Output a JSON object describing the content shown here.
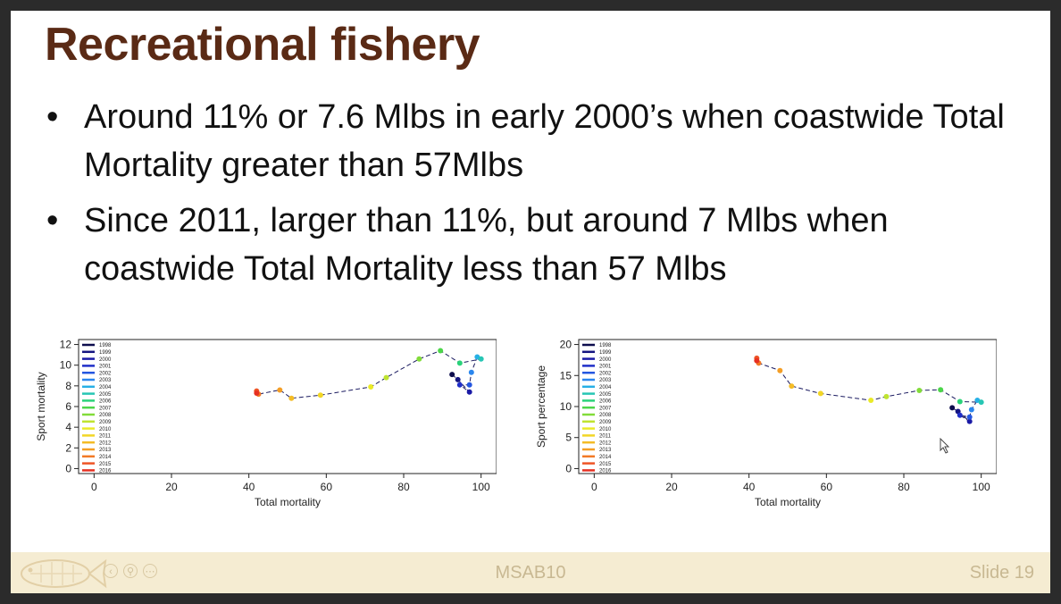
{
  "slide": {
    "title": "Recreational fishery",
    "bullets": [
      "Around 11% or 7.6 Mlbs in early 2000’s when coastwide Total Mortality greater than 57Mlbs",
      "Since 2011, larger than 11%, but around 7 Mlbs when coastwide Total Mortality less than 57 Mlbs"
    ],
    "footer_center": "MSAB10",
    "footer_right": "Slide 19",
    "footer_controls": [
      "prev-icon",
      "zoom-icon",
      "more-icon"
    ],
    "colors": {
      "title": "#5a2a15",
      "footer_bg": "#f5ecd2",
      "footer_text": "#c8b892"
    }
  },
  "chart_data": [
    {
      "type": "line",
      "xlabel": "Total mortality",
      "ylabel": "Sport mortality",
      "xlim": [
        0,
        100
      ],
      "ylim": [
        0,
        12
      ],
      "xticks": [
        0,
        20,
        40,
        60,
        80,
        100
      ],
      "yticks": [
        0,
        2,
        4,
        6,
        8,
        10,
        12
      ],
      "legend_position": "top-left",
      "series": [
        {
          "name": "1998",
          "x": 92.5,
          "y": 9.1,
          "color": "#0d0d4d"
        },
        {
          "name": "1999",
          "x": 94.0,
          "y": 8.6,
          "color": "#141480"
        },
        {
          "name": "2000",
          "x": 97.0,
          "y": 7.4,
          "color": "#1a1aa6"
        },
        {
          "name": "2001",
          "x": 94.5,
          "y": 8.1,
          "color": "#1f2ec8"
        },
        {
          "name": "2002",
          "x": 97.0,
          "y": 8.1,
          "color": "#2456e0"
        },
        {
          "name": "2003",
          "x": 97.5,
          "y": 9.3,
          "color": "#2a86ee"
        },
        {
          "name": "2004",
          "x": 99.0,
          "y": 10.8,
          "color": "#27b0e6"
        },
        {
          "name": "2005",
          "x": 100.0,
          "y": 10.6,
          "color": "#27c6b4"
        },
        {
          "name": "2006",
          "x": 94.5,
          "y": 10.2,
          "color": "#2ad27a"
        },
        {
          "name": "2007",
          "x": 89.5,
          "y": 11.4,
          "color": "#4cd64a"
        },
        {
          "name": "2008",
          "x": 84.0,
          "y": 10.6,
          "color": "#82dc3a"
        },
        {
          "name": "2009",
          "x": 75.5,
          "y": 8.8,
          "color": "#bfe430"
        },
        {
          "name": "2010",
          "x": 71.5,
          "y": 7.9,
          "color": "#eaea28"
        },
        {
          "name": "2011",
          "x": 58.5,
          "y": 7.1,
          "color": "#f2d626"
        },
        {
          "name": "2012",
          "x": 51.0,
          "y": 6.8,
          "color": "#f4bc26"
        },
        {
          "name": "2013",
          "x": 48.0,
          "y": 7.6,
          "color": "#f49e26"
        },
        {
          "name": "2014",
          "x": 42.5,
          "y": 7.2,
          "color": "#f27a26"
        },
        {
          "name": "2015",
          "x": 42.0,
          "y": 7.5,
          "color": "#ee5426"
        },
        {
          "name": "2016",
          "x": 42.0,
          "y": 7.3,
          "color": "#e63022"
        }
      ]
    },
    {
      "type": "line",
      "xlabel": "Total mortality",
      "ylabel": "Sport percentage",
      "xlim": [
        0,
        100
      ],
      "ylim": [
        0,
        20
      ],
      "xticks": [
        0,
        20,
        40,
        60,
        80,
        100
      ],
      "yticks": [
        0,
        5,
        10,
        15,
        20
      ],
      "legend_position": "top-left",
      "series": [
        {
          "name": "1998",
          "x": 92.5,
          "y": 9.8,
          "color": "#0d0d4d"
        },
        {
          "name": "1999",
          "x": 94.0,
          "y": 9.2,
          "color": "#141480"
        },
        {
          "name": "2000",
          "x": 97.0,
          "y": 7.6,
          "color": "#1a1aa6"
        },
        {
          "name": "2001",
          "x": 94.5,
          "y": 8.6,
          "color": "#1f2ec8"
        },
        {
          "name": "2002",
          "x": 97.0,
          "y": 8.3,
          "color": "#2456e0"
        },
        {
          "name": "2003",
          "x": 97.5,
          "y": 9.5,
          "color": "#2a86ee"
        },
        {
          "name": "2004",
          "x": 99.0,
          "y": 11.0,
          "color": "#27b0e6"
        },
        {
          "name": "2005",
          "x": 100.0,
          "y": 10.7,
          "color": "#27c6b4"
        },
        {
          "name": "2006",
          "x": 94.5,
          "y": 10.8,
          "color": "#2ad27a"
        },
        {
          "name": "2007",
          "x": 89.5,
          "y": 12.7,
          "color": "#4cd64a"
        },
        {
          "name": "2008",
          "x": 84.0,
          "y": 12.6,
          "color": "#82dc3a"
        },
        {
          "name": "2009",
          "x": 75.5,
          "y": 11.6,
          "color": "#bfe430"
        },
        {
          "name": "2010",
          "x": 71.5,
          "y": 11.0,
          "color": "#eaea28"
        },
        {
          "name": "2011",
          "x": 58.5,
          "y": 12.1,
          "color": "#f2d626"
        },
        {
          "name": "2012",
          "x": 51.0,
          "y": 13.3,
          "color": "#f4bc26"
        },
        {
          "name": "2013",
          "x": 48.0,
          "y": 15.8,
          "color": "#f49e26"
        },
        {
          "name": "2014",
          "x": 42.5,
          "y": 17.0,
          "color": "#f27a26"
        },
        {
          "name": "2015",
          "x": 42.0,
          "y": 17.8,
          "color": "#ee5426"
        },
        {
          "name": "2016",
          "x": 42.0,
          "y": 17.4,
          "color": "#e63022"
        }
      ]
    }
  ]
}
